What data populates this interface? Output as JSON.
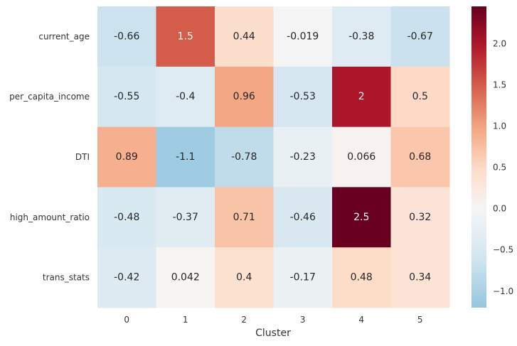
{
  "chart_data": {
    "type": "heatmap",
    "title": "",
    "xlabel": "Cluster",
    "ylabel": "",
    "x_categories": [
      "0",
      "1",
      "2",
      "3",
      "4",
      "5"
    ],
    "y_categories": [
      "current_age",
      "per_capita_income",
      "DTI",
      "high_amount_ratio",
      "trans_stats"
    ],
    "values": [
      [
        -0.66,
        1.5,
        0.44,
        -0.019,
        -0.38,
        -0.67
      ],
      [
        -0.55,
        -0.4,
        0.96,
        -0.53,
        2,
        0.5
      ],
      [
        0.89,
        -1.1,
        -0.78,
        -0.23,
        0.066,
        0.68
      ],
      [
        -0.48,
        -0.37,
        0.71,
        -0.46,
        2.5,
        0.32
      ],
      [
        -0.42,
        0.042,
        0.4,
        -0.17,
        0.48,
        0.34
      ]
    ],
    "value_labels": [
      [
        "-0.66",
        "1.5",
        "0.44",
        "-0.019",
        "-0.38",
        "-0.67"
      ],
      [
        "-0.55",
        "-0.4",
        "0.96",
        "-0.53",
        "2",
        "0.5"
      ],
      [
        "0.89",
        "-1.1",
        "-0.78",
        "-0.23",
        "0.066",
        "0.68"
      ],
      [
        "-0.48",
        "-0.37",
        "0.71",
        "-0.46",
        "2.5",
        "0.32"
      ],
      [
        "-0.42",
        "0.042",
        "0.4",
        "-0.17",
        "0.48",
        "0.34"
      ]
    ],
    "colormap": "RdBu_r (diverging, centered at 0)",
    "color_range": [
      -1.2,
      2.45
    ],
    "colorbar_ticks": [
      -1.0,
      -0.5,
      0.0,
      0.5,
      1.0,
      1.5,
      2.0
    ],
    "colorbar_tick_labels": [
      "−1.0",
      "−0.5",
      "0.0",
      "0.5",
      "1.0",
      "1.5",
      "2.0"
    ],
    "grid": false
  }
}
